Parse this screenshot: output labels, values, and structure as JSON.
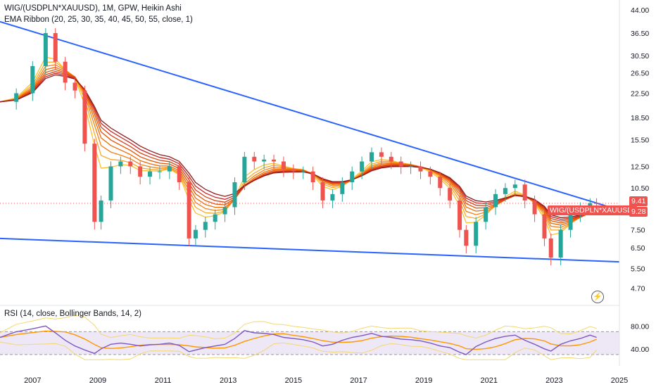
{
  "legend": {
    "title": "WIG/(USDPLN*XAUUSD), 1M, GPW, Heikin Ashi",
    "ema": "EMA Ribbon (20, 25, 30, 35, 40, 45, 50, 55, close, 1)",
    "rsi": "RSI (14, close, Bollinger Bands, 14, 2)"
  },
  "badges": {
    "symbol_label": "WIG/(USDPLN*XAUUSD)",
    "last_price": "9.28",
    "high_price": "9.41"
  },
  "icons": {
    "flash": "lightning-icon"
  },
  "colors": {
    "up": "#26a69a",
    "down": "#ef5350",
    "trendline": "#2962ff",
    "rsi_line": "#7e57c2",
    "rsi_band_fill": "#ede7f6",
    "bb_band": "#f5d76e",
    "bb_mid": "#ff9800",
    "ribbon": [
      "#fbc02d",
      "#f9a825",
      "#f57f17",
      "#ef6c00",
      "#e65100",
      "#d84315",
      "#c62828",
      "#8e1d1d"
    ]
  },
  "chart_data": [
    {
      "type": "candlestick",
      "title": "WIG/(USDPLN*XAUUSD)",
      "scale": "log",
      "y_ticks": [
        44.0,
        36.5,
        30.5,
        26.5,
        22.5,
        18.5,
        15.5,
        12.5,
        10.5,
        7.5,
        6.5,
        5.5,
        4.7
      ],
      "x_ticks": [
        "2007",
        "2009",
        "2011",
        "2013",
        "2015",
        "2017",
        "2019",
        "2021",
        "2023",
        "2025"
      ],
      "x_range": [
        2006.0,
        2025.0
      ],
      "y_range": [
        4.3,
        44.0
      ],
      "series": [
        {
          "name": "WIG/(USDPLN*XAUUSD)",
          "x": [
            2006.0,
            2006.5,
            2007.0,
            2007.4,
            2007.7,
            2008.0,
            2008.3,
            2008.6,
            2008.9,
            2009.1,
            2009.4,
            2009.7,
            2010.0,
            2010.3,
            2010.6,
            2010.9,
            2011.2,
            2011.5,
            2011.8,
            2012.0,
            2012.3,
            2012.6,
            2012.9,
            2013.2,
            2013.5,
            2013.8,
            2014.1,
            2014.4,
            2014.7,
            2015.0,
            2015.3,
            2015.6,
            2015.9,
            2016.2,
            2016.5,
            2016.8,
            2017.1,
            2017.4,
            2017.7,
            2018.0,
            2018.3,
            2018.6,
            2018.9,
            2019.2,
            2019.5,
            2019.8,
            2020.1,
            2020.3,
            2020.6,
            2020.9,
            2021.2,
            2021.5,
            2021.8,
            2022.1,
            2022.4,
            2022.7,
            2022.9,
            2023.2,
            2023.5,
            2023.8,
            2024.1,
            2024.3
          ],
          "close": [
            21.0,
            22.5,
            28.0,
            36.5,
            29.0,
            24.5,
            23.0,
            15.0,
            8.0,
            9.5,
            12.5,
            13.0,
            12.5,
            11.5,
            12.0,
            12.0,
            12.5,
            11.0,
            7.0,
            7.5,
            8.0,
            8.5,
            9.0,
            11.0,
            13.5,
            13.0,
            13.2,
            13.0,
            12.2,
            12.0,
            12.0,
            11.0,
            9.5,
            10.0,
            11.0,
            12.0,
            13.0,
            14.0,
            13.5,
            13.0,
            12.5,
            12.5,
            12.0,
            11.5,
            10.5,
            9.5,
            7.5,
            6.6,
            8.0,
            9.0,
            10.0,
            10.5,
            10.8,
            9.5,
            8.5,
            7.0,
            6.0,
            7.5,
            8.5,
            9.0,
            9.3,
            9.28
          ]
        }
      ],
      "ribbon_lengths": [
        20,
        25,
        30,
        35,
        40,
        45,
        50,
        55
      ],
      "trendlines": [
        {
          "name": "upper",
          "from": [
            2006.0,
            40.0
          ],
          "to": [
            2025.0,
            8.8
          ]
        },
        {
          "name": "lower",
          "from": [
            2006.0,
            7.0
          ],
          "to": [
            2025.0,
            5.8
          ]
        }
      ]
    },
    {
      "type": "line",
      "title": "RSI (14, close, Bollinger Bands, 14, 2)",
      "y_ticks": [
        80.0,
        40.0
      ],
      "y_range": [
        20,
        100
      ],
      "band": [
        30,
        70
      ],
      "series": [
        {
          "name": "RSI",
          "x": [
            2006.0,
            2006.5,
            2007.0,
            2007.4,
            2007.7,
            2008.0,
            2008.3,
            2008.6,
            2008.9,
            2009.1,
            2009.4,
            2009.7,
            2010.0,
            2010.3,
            2010.6,
            2010.9,
            2011.2,
            2011.5,
            2011.8,
            2012.0,
            2012.3,
            2012.6,
            2012.9,
            2013.2,
            2013.5,
            2013.8,
            2014.1,
            2014.4,
            2014.7,
            2015.0,
            2015.3,
            2015.6,
            2015.9,
            2016.2,
            2016.5,
            2016.8,
            2017.1,
            2017.4,
            2017.7,
            2018.0,
            2018.3,
            2018.6,
            2018.9,
            2019.2,
            2019.5,
            2019.8,
            2020.1,
            2020.3,
            2020.6,
            2020.9,
            2021.2,
            2021.5,
            2021.8,
            2022.1,
            2022.4,
            2022.7,
            2022.9,
            2023.2,
            2023.5,
            2023.8,
            2024.1,
            2024.3
          ],
          "values": [
            60,
            70,
            75,
            80,
            68,
            55,
            45,
            38,
            32,
            40,
            48,
            50,
            48,
            45,
            47,
            48,
            50,
            46,
            35,
            38,
            42,
            45,
            48,
            58,
            72,
            68,
            67,
            65,
            60,
            58,
            56,
            52,
            45,
            48,
            55,
            60,
            63,
            67,
            62,
            60,
            57,
            56,
            54,
            50,
            45,
            42,
            34,
            30,
            44,
            52,
            58,
            62,
            64,
            55,
            48,
            40,
            36,
            48,
            54,
            58,
            64,
            60
          ]
        }
      ]
    }
  ]
}
